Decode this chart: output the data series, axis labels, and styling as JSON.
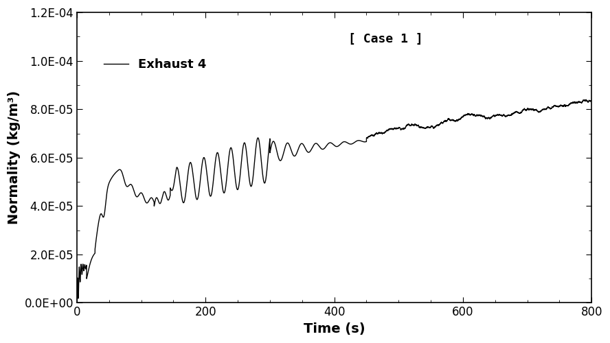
{
  "title": "[ Case 1 ]",
  "xlabel": "Time (s)",
  "ylabel": "Normality (kg/m³)",
  "legend_label": "Exhaust 4",
  "xlim": [
    0,
    800
  ],
  "ylim": [
    0,
    0.00012
  ],
  "yticks": [
    0.0,
    2e-05,
    4e-05,
    6e-05,
    8e-05,
    0.0001,
    0.00012
  ],
  "xticks": [
    0,
    200,
    400,
    600,
    800
  ],
  "line_color": "#000000",
  "background_color": "#ffffff",
  "title_fontsize": 13,
  "label_fontsize": 14,
  "tick_fontsize": 12,
  "legend_fontsize": 13
}
